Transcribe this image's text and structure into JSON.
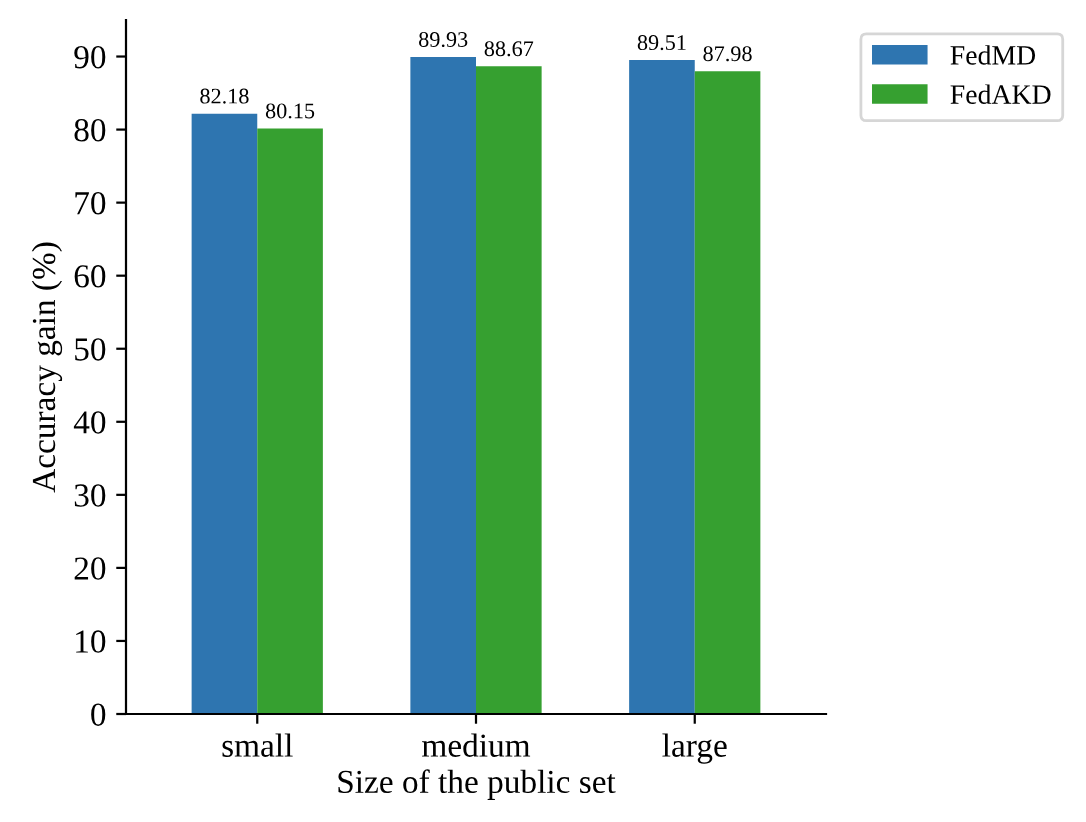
{
  "chart_data": {
    "type": "bar",
    "xlabel": "Size of the public set",
    "ylabel": "Accuracy gain (%)",
    "categories": [
      "small",
      "medium",
      "large"
    ],
    "series": [
      {
        "name": "FedMD",
        "color": "#2e75b0",
        "values": [
          82.18,
          89.93,
          89.51
        ]
      },
      {
        "name": "FedAKD",
        "color": "#36a030",
        "values": [
          80.15,
          88.67,
          87.98
        ]
      }
    ],
    "ylim": [
      0,
      95
    ],
    "yticks": [
      0,
      10,
      20,
      30,
      40,
      50,
      60,
      70,
      80,
      90
    ],
    "data_labels": true,
    "legend": "top right",
    "grid": false
  }
}
